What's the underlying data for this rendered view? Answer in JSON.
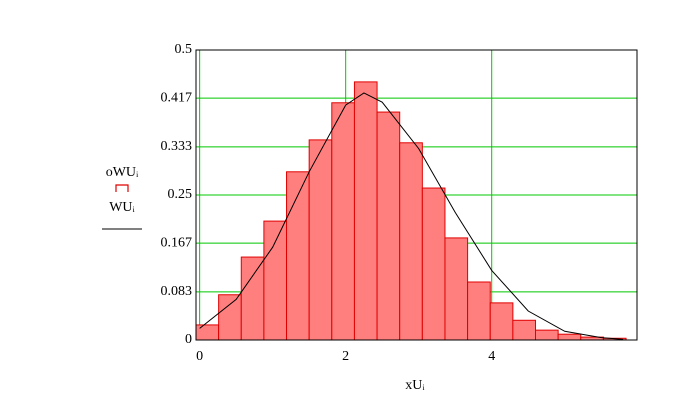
{
  "chart_data": {
    "type": "histogram",
    "x_label": "xUᵢ",
    "bins": [
      -0.05,
      0.26,
      0.57,
      0.88,
      1.19,
      1.5,
      1.81,
      2.12,
      2.43,
      2.74,
      3.05,
      3.36,
      3.67,
      3.98,
      4.29,
      4.6,
      4.91,
      5.22,
      5.53,
      5.84
    ],
    "series": [
      {
        "name": "oWUᵢ",
        "type": "histogram",
        "color": "#ff7f7f",
        "edge_color": "#e00000",
        "values": [
          0.026,
          0.078,
          0.143,
          0.205,
          0.29,
          0.345,
          0.409,
          0.445,
          0.393,
          0.34,
          0.262,
          0.176,
          0.1,
          0.064,
          0.034,
          0.017,
          0.01,
          0.005,
          0.003
        ]
      },
      {
        "name": "WUᵢ",
        "type": "line",
        "color": "#000000",
        "x": [
          0,
          0.5,
          1,
          1.5,
          2,
          2.25,
          2.5,
          3,
          3.5,
          4,
          4.5,
          5,
          5.5,
          5.8
        ],
        "values": [
          0.02,
          0.07,
          0.16,
          0.29,
          0.405,
          0.426,
          0.41,
          0.33,
          0.22,
          0.12,
          0.05,
          0.015,
          0.004,
          0.001
        ]
      }
    ],
    "xlim": [
      -0.05,
      5.99
    ],
    "ylim": [
      0,
      0.5
    ],
    "xticks": [
      0,
      2,
      4
    ],
    "yticks": [
      0,
      0.083,
      0.167,
      0.25,
      0.333,
      0.417,
      0.5
    ],
    "grid": true,
    "grid_color": "#00c800"
  }
}
